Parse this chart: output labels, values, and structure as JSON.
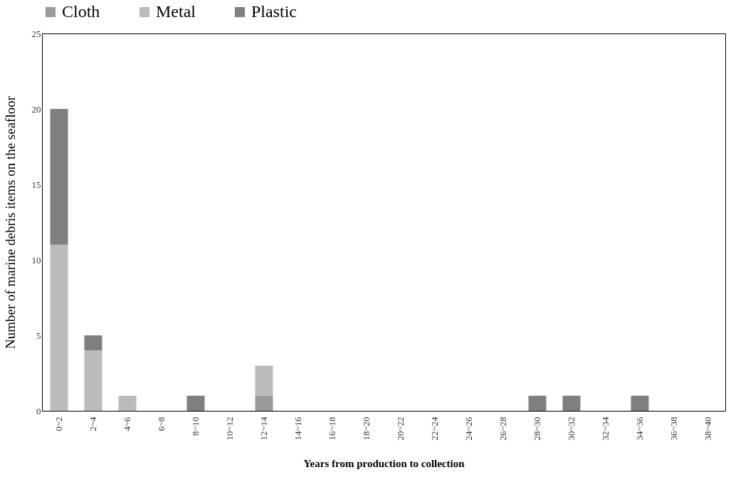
{
  "chart_data": {
    "type": "bar",
    "stacked": true,
    "xlabel": "Years from production to collection",
    "ylabel": "Number of marine debris items on the seafloor",
    "categories": [
      "0~2",
      "2~4",
      "4~6",
      "6~8",
      "8~10",
      "10~12",
      "12~14",
      "14~16",
      "16~18",
      "18~20",
      "20~22",
      "22~24",
      "24~26",
      "26~28",
      "28~30",
      "30~32",
      "32~34",
      "34~36",
      "36~38",
      "38~40"
    ],
    "series": [
      {
        "name": "Cloth",
        "color": "#9a9a9c",
        "values": [
          null,
          null,
          null,
          null,
          null,
          null,
          1,
          null,
          null,
          null,
          null,
          null,
          null,
          null,
          null,
          null,
          null,
          null,
          null,
          null
        ]
      },
      {
        "name": "Metal",
        "color": "#bbbbbd",
        "values": [
          11,
          4,
          1,
          null,
          null,
          null,
          2,
          null,
          null,
          null,
          null,
          null,
          null,
          null,
          null,
          null,
          null,
          null,
          null,
          null
        ]
      },
      {
        "name": "Plastic",
        "color": "#7f7f81",
        "values": [
          9,
          1,
          null,
          null,
          1,
          null,
          null,
          null,
          null,
          null,
          null,
          null,
          null,
          null,
          1,
          1,
          null,
          1,
          null,
          null
        ]
      }
    ],
    "ylim": [
      0,
      25
    ],
    "yticks": [
      0,
      5,
      10,
      15,
      20,
      25
    ],
    "grid": false,
    "legend": "top"
  }
}
